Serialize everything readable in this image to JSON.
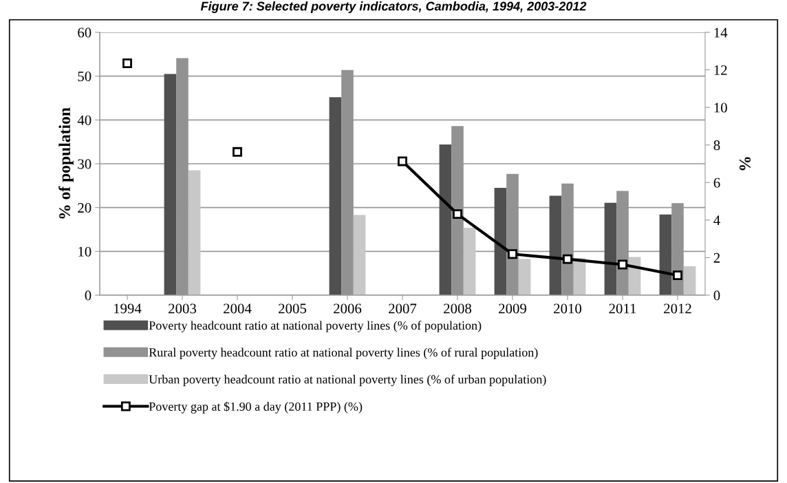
{
  "chart_data": {
    "type": "bar",
    "title": "Figure 7: Selected poverty indicators, Cambodia, 1994, 2003-2012",
    "ylabel": "% of population",
    "y2label": "%",
    "categories": [
      "1994",
      "2003",
      "2004",
      "2005",
      "2006",
      "2007",
      "2008",
      "2009",
      "2010",
      "2011",
      "2012"
    ],
    "series": [
      {
        "name": "Poverty headcount ratio at national poverty lines (% of population)",
        "color": "#505050",
        "values": [
          null,
          50.5,
          null,
          null,
          45.2,
          null,
          34.4,
          24.5,
          22.7,
          21.1,
          18.4
        ]
      },
      {
        "name": "Rural poverty headcount ratio at national poverty lines (% of rural population)",
        "color": "#929292",
        "values": [
          null,
          54.1,
          null,
          null,
          51.4,
          null,
          38.6,
          27.7,
          25.5,
          23.8,
          21.0
        ]
      },
      {
        "name": "Urban poverty headcount ratio at national poverty lines (% of urban population)",
        "color": "#c8c8c8",
        "values": [
          null,
          28.5,
          null,
          null,
          18.3,
          null,
          15.4,
          8.3,
          8.5,
          8.7,
          6.6
        ]
      },
      {
        "name": "Poverty gap at $1.90 a day (2011 PPP) (%)",
        "type": "line",
        "axis": "y2",
        "color": "#000000",
        "marker": "square",
        "values": [
          12.35,
          null,
          7.63,
          null,
          null,
          7.13,
          4.32,
          2.19,
          1.92,
          1.63,
          1.06
        ]
      }
    ],
    "ylim": [
      0,
      60
    ],
    "yticks": [
      0,
      10,
      20,
      30,
      40,
      50,
      60
    ],
    "y2lim": [
      0,
      14
    ],
    "y2ticks": [
      0,
      2,
      4,
      6,
      8,
      10,
      12,
      14
    ],
    "grid": "y",
    "legend": "bottom"
  }
}
